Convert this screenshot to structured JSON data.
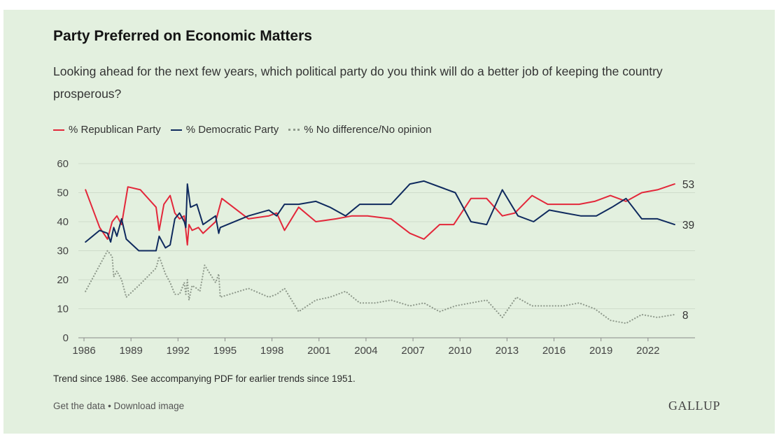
{
  "title": "Party Preferred on Economic Matters",
  "subtitle": "Looking ahead for the next few years, which political party do you think will do a better job of keeping the country prosperous?",
  "note": "Trend since 1986. See accompanying PDF for earlier trends since 1951.",
  "footer": {
    "get_data": "Get the data",
    "separator": " • ",
    "download": "Download image"
  },
  "logo": "GALLUP",
  "colors": {
    "republican": "#e3273a",
    "democratic": "#0f2a5e",
    "no_difference": "#8f9a8c",
    "background": "#e3f0df"
  },
  "chart_data": {
    "type": "line",
    "xlim": [
      1986,
      2025
    ],
    "ylim": [
      0,
      60
    ],
    "x_ticks": [
      1986,
      1989,
      1992,
      1995,
      1998,
      2001,
      2004,
      2007,
      2010,
      2013,
      2016,
      2019,
      2022
    ],
    "y_ticks": [
      0,
      10,
      20,
      30,
      40,
      50,
      60
    ],
    "grid": true,
    "legend_position": "top-left",
    "series": [
      {
        "name": "% Republican Party",
        "style": "solid",
        "end_label": "53",
        "points": [
          [
            1986.1,
            51
          ],
          [
            1987.0,
            38
          ],
          [
            1987.5,
            34
          ],
          [
            1987.8,
            40
          ],
          [
            1988.1,
            42
          ],
          [
            1988.4,
            39
          ],
          [
            1988.8,
            52
          ],
          [
            1989.6,
            51
          ],
          [
            1990.6,
            45
          ],
          [
            1990.8,
            37
          ],
          [
            1991.1,
            46
          ],
          [
            1991.5,
            49
          ],
          [
            1991.8,
            43
          ],
          [
            1992.1,
            41
          ],
          [
            1992.4,
            42
          ],
          [
            1992.6,
            32
          ],
          [
            1992.7,
            39
          ],
          [
            1992.9,
            37
          ],
          [
            1993.3,
            38
          ],
          [
            1993.6,
            36
          ],
          [
            1994.4,
            40
          ],
          [
            1994.8,
            48
          ],
          [
            1996.5,
            41
          ],
          [
            1997.8,
            42
          ],
          [
            1998.3,
            43
          ],
          [
            1998.8,
            37
          ],
          [
            1999.7,
            45
          ],
          [
            2000.8,
            40
          ],
          [
            2002.1,
            41
          ],
          [
            2003.1,
            42
          ],
          [
            2004.1,
            42
          ],
          [
            2005.6,
            41
          ],
          [
            2006.8,
            36
          ],
          [
            2007.7,
            34
          ],
          [
            2008.7,
            39
          ],
          [
            2009.6,
            39
          ],
          [
            2010.7,
            48
          ],
          [
            2011.7,
            48
          ],
          [
            2012.7,
            42
          ],
          [
            2013.5,
            43
          ],
          [
            2014.6,
            49
          ],
          [
            2015.6,
            46
          ],
          [
            2016.7,
            46
          ],
          [
            2017.6,
            46
          ],
          [
            2018.6,
            47
          ],
          [
            2019.6,
            49
          ],
          [
            2020.6,
            47
          ],
          [
            2021.6,
            50
          ],
          [
            2022.6,
            51
          ],
          [
            2023.7,
            53
          ]
        ]
      },
      {
        "name": "% Democratic Party",
        "style": "solid",
        "end_label": "39",
        "points": [
          [
            1986.1,
            33
          ],
          [
            1987.0,
            37
          ],
          [
            1987.5,
            36
          ],
          [
            1987.7,
            33
          ],
          [
            1987.9,
            38
          ],
          [
            1988.1,
            35
          ],
          [
            1988.4,
            41
          ],
          [
            1988.7,
            34
          ],
          [
            1989.5,
            30
          ],
          [
            1990.6,
            30
          ],
          [
            1990.8,
            35
          ],
          [
            1991.2,
            31
          ],
          [
            1991.5,
            32
          ],
          [
            1991.8,
            41
          ],
          [
            1992.1,
            43
          ],
          [
            1992.4,
            40
          ],
          [
            1992.5,
            38
          ],
          [
            1992.6,
            53
          ],
          [
            1992.8,
            45
          ],
          [
            1993.2,
            46
          ],
          [
            1993.6,
            39
          ],
          [
            1994.4,
            42
          ],
          [
            1994.6,
            36
          ],
          [
            1994.7,
            38
          ],
          [
            1996.5,
            42
          ],
          [
            1997.8,
            44
          ],
          [
            1998.3,
            42
          ],
          [
            1998.8,
            46
          ],
          [
            1999.7,
            46
          ],
          [
            2000.8,
            47
          ],
          [
            2001.7,
            45
          ],
          [
            2002.7,
            42
          ],
          [
            2003.6,
            46
          ],
          [
            2004.6,
            46
          ],
          [
            2005.6,
            46
          ],
          [
            2006.8,
            53
          ],
          [
            2007.7,
            54
          ],
          [
            2009.7,
            50
          ],
          [
            2010.7,
            40
          ],
          [
            2011.7,
            39
          ],
          [
            2012.7,
            51
          ],
          [
            2013.7,
            42
          ],
          [
            2014.7,
            40
          ],
          [
            2015.7,
            44
          ],
          [
            2016.7,
            43
          ],
          [
            2017.7,
            42
          ],
          [
            2018.7,
            42
          ],
          [
            2019.7,
            45
          ],
          [
            2020.6,
            48
          ],
          [
            2021.6,
            41
          ],
          [
            2022.6,
            41
          ],
          [
            2023.7,
            39
          ]
        ]
      },
      {
        "name": "% No difference/No opinion",
        "style": "dotted",
        "end_label": "8",
        "points": [
          [
            1986.1,
            16
          ],
          [
            1987.5,
            30
          ],
          [
            1987.8,
            28
          ],
          [
            1987.9,
            21
          ],
          [
            1988.1,
            23
          ],
          [
            1988.4,
            20
          ],
          [
            1988.7,
            14
          ],
          [
            1989.5,
            18
          ],
          [
            1990.6,
            24
          ],
          [
            1990.8,
            28
          ],
          [
            1991.2,
            22
          ],
          [
            1991.5,
            19
          ],
          [
            1991.8,
            15
          ],
          [
            1992.1,
            15
          ],
          [
            1992.4,
            19
          ],
          [
            1992.5,
            15
          ],
          [
            1992.6,
            20
          ],
          [
            1992.7,
            13
          ],
          [
            1992.9,
            18
          ],
          [
            1993.2,
            17
          ],
          [
            1993.4,
            16
          ],
          [
            1993.7,
            25
          ],
          [
            1994.4,
            19
          ],
          [
            1994.6,
            22
          ],
          [
            1994.7,
            14
          ],
          [
            1996.5,
            17
          ],
          [
            1997.8,
            14
          ],
          [
            1998.3,
            15
          ],
          [
            1998.8,
            17
          ],
          [
            1999.7,
            9
          ],
          [
            2000.8,
            13
          ],
          [
            2001.7,
            14
          ],
          [
            2002.7,
            16
          ],
          [
            2003.6,
            12
          ],
          [
            2004.6,
            12
          ],
          [
            2005.6,
            13
          ],
          [
            2006.8,
            11
          ],
          [
            2007.7,
            12
          ],
          [
            2008.7,
            9
          ],
          [
            2009.7,
            11
          ],
          [
            2010.7,
            12
          ],
          [
            2011.7,
            13
          ],
          [
            2012.7,
            7
          ],
          [
            2013.6,
            14
          ],
          [
            2014.6,
            11
          ],
          [
            2015.6,
            11
          ],
          [
            2016.6,
            11
          ],
          [
            2017.6,
            12
          ],
          [
            2018.6,
            10
          ],
          [
            2019.6,
            6
          ],
          [
            2020.6,
            5
          ],
          [
            2021.6,
            8
          ],
          [
            2022.6,
            7
          ],
          [
            2023.7,
            8
          ]
        ]
      }
    ]
  }
}
